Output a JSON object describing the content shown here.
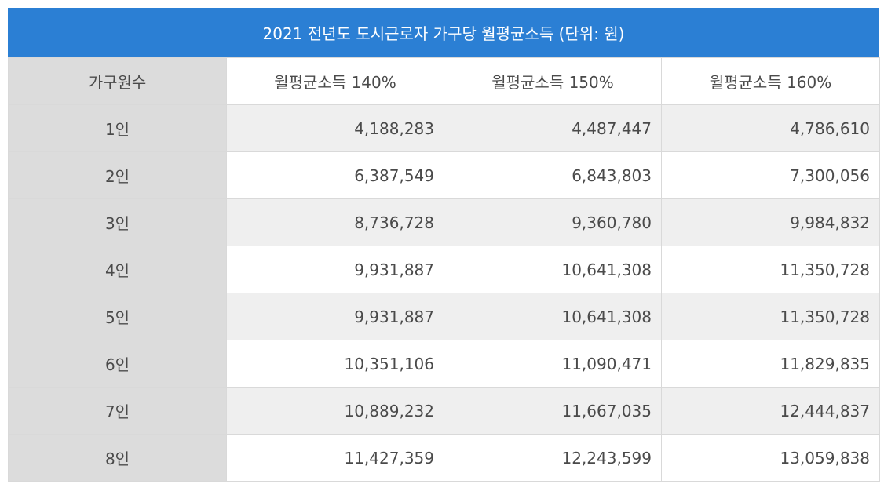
{
  "title": "2021 전년도 도시근로자 가구당 월평균소득 (단위: 원)",
  "headers": [
    "가구원수",
    "월평균소득 140%",
    "월평균소득 150%",
    "월평균소득 160%"
  ],
  "rows": [
    {
      "label": "1인",
      "values": [
        "4,188,283",
        "4,487,447",
        "4,786,610"
      ]
    },
    {
      "label": "2인",
      "values": [
        "6,387,549",
        "6,843,803",
        "7,300,056"
      ]
    },
    {
      "label": "3인",
      "values": [
        "8,736,728",
        "9,360,780",
        "9,984,832"
      ]
    },
    {
      "label": "4인",
      "values": [
        "9,931,887",
        "10,641,308",
        "11,350,728"
      ]
    },
    {
      "label": "5인",
      "values": [
        "9,931,887",
        "10,641,308",
        "11,350,728"
      ]
    },
    {
      "label": "6인",
      "values": [
        "10,351,106",
        "11,090,471",
        "11,829,835"
      ]
    },
    {
      "label": "7인",
      "values": [
        "10,889,232",
        "11,667,035",
        "12,444,837"
      ]
    },
    {
      "label": "8인",
      "values": [
        "11,427,359",
        "12,243,599",
        "13,059,838"
      ]
    }
  ],
  "colors": {
    "title_bg": "#2b7fd4",
    "label_bg": "#dcdcdc",
    "stripe_bg": "#efefef"
  }
}
